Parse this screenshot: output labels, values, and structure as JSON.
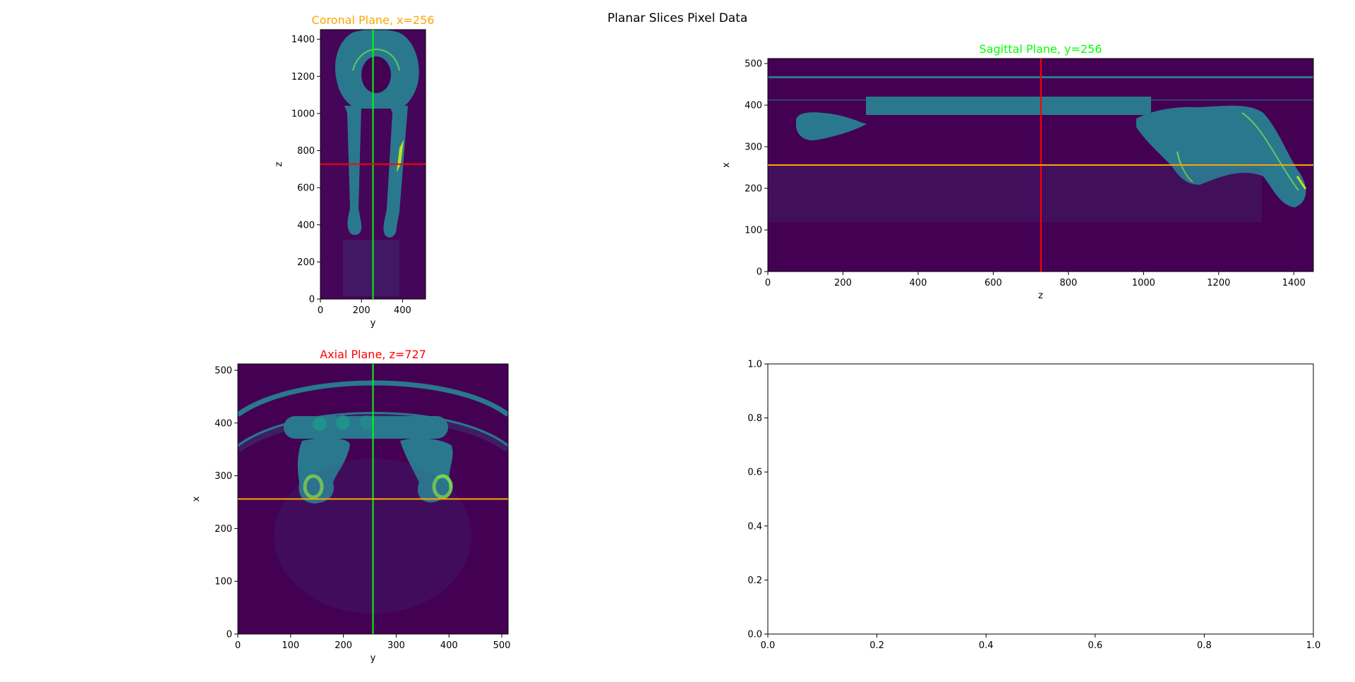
{
  "figure": {
    "suptitle": "Planar Slices Pixel Data"
  },
  "colors": {
    "coronal_title": "#ffa500",
    "sagittal_title": "#00ff00",
    "axial_title": "#ff0000",
    "x_line": "#00ff00",
    "y_line": "#ffa500",
    "z_line": "#ff0000",
    "image_background": "#440154",
    "tissue": "#2a788e",
    "bone": "#7ad151",
    "bright_bone": "#bddf26"
  },
  "chart_data": [
    {
      "id": "coronal",
      "type": "heatmap",
      "title": "Coronal Plane, x=256",
      "xlabel": "y",
      "ylabel": "z",
      "xlim": [
        0,
        512
      ],
      "ylim": [
        0,
        1452
      ],
      "xticks": [
        0,
        200,
        400
      ],
      "yticks": [
        0,
        200,
        400,
        600,
        800,
        1000,
        1200,
        1400
      ],
      "colormap": "viridis",
      "crosshairs": [
        {
          "axis": "vertical",
          "value": 256,
          "color": "#00ff00"
        },
        {
          "axis": "horizontal",
          "value": 727,
          "color": "#ff0000"
        }
      ]
    },
    {
      "id": "sagittal",
      "type": "heatmap",
      "title": "Sagittal Plane, y=256",
      "xlabel": "z",
      "ylabel": "x",
      "xlim": [
        0,
        1452
      ],
      "ylim": [
        0,
        512
      ],
      "xticks": [
        0,
        200,
        400,
        600,
        800,
        1000,
        1200,
        1400
      ],
      "yticks": [
        0,
        100,
        200,
        300,
        400,
        500
      ],
      "colormap": "viridis",
      "crosshairs": [
        {
          "axis": "vertical",
          "value": 727,
          "color": "#ff0000"
        },
        {
          "axis": "horizontal",
          "value": 256,
          "color": "#ffa500"
        }
      ]
    },
    {
      "id": "axial",
      "type": "heatmap",
      "title": "Axial Plane, z=727",
      "xlabel": "y",
      "ylabel": "x",
      "xlim": [
        0,
        512
      ],
      "ylim": [
        0,
        512
      ],
      "xticks": [
        0,
        100,
        200,
        300,
        400,
        500
      ],
      "yticks": [
        0,
        100,
        200,
        300,
        400,
        500
      ],
      "colormap": "viridis",
      "crosshairs": [
        {
          "axis": "vertical",
          "value": 256,
          "color": "#00ff00"
        },
        {
          "axis": "horizontal",
          "value": 256,
          "color": "#ffa500"
        }
      ]
    },
    {
      "id": "empty",
      "type": "scatter",
      "title": "",
      "xlabel": "",
      "ylabel": "",
      "xlim": [
        0,
        1
      ],
      "ylim": [
        0,
        1
      ],
      "xticks": [
        "0.0",
        "0.2",
        "0.4",
        "0.6",
        "0.8",
        "1.0"
      ],
      "yticks": [
        "0.0",
        "0.2",
        "0.4",
        "0.6",
        "0.8",
        "1.0"
      ],
      "series": []
    }
  ]
}
